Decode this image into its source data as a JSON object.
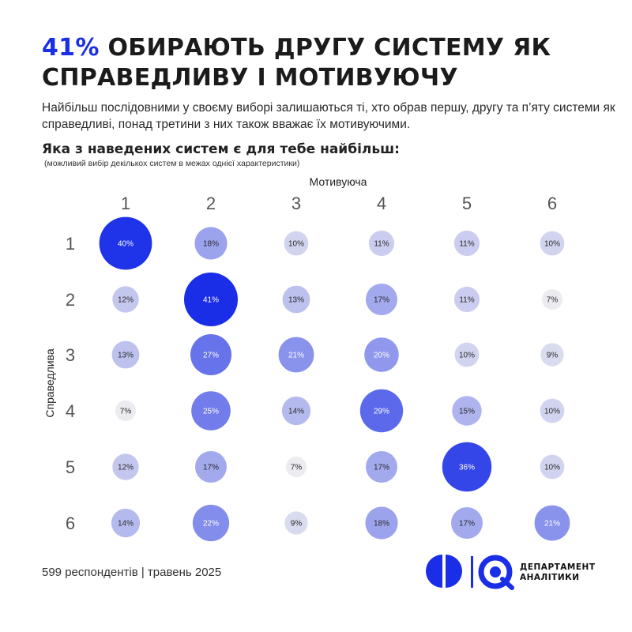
{
  "header": {
    "title_accent": "41%",
    "title_rest": "ОБИРАЮТЬ ДРУГУ СИСТЕМУ ЯК СПРАВЕДЛИВУ І МОТИВУЮЧУ",
    "subtitle": "Найбільш послідовними у своєму виборі залишаються ті, хто обрав першу, другу та п’яту системи як справедливі, понад третини з них також вважає їх мотивуючими.",
    "question": "Яка з наведених систем є для тебе найбільш:",
    "note": "(можливий вибір декількох систем в межах однієї характеристики)"
  },
  "chart_data": {
    "type": "heatmap",
    "xlabel": "Мотивуюча",
    "ylabel": "Справедлива",
    "x_categories": [
      "1",
      "2",
      "3",
      "4",
      "5",
      "6"
    ],
    "y_categories": [
      "1",
      "2",
      "3",
      "4",
      "5",
      "6"
    ],
    "values": [
      [
        40,
        18,
        10,
        11,
        11,
        10
      ],
      [
        12,
        41,
        13,
        17,
        11,
        7
      ],
      [
        13,
        27,
        21,
        20,
        10,
        9
      ],
      [
        7,
        25,
        14,
        29,
        15,
        10
      ],
      [
        12,
        17,
        7,
        17,
        36,
        10
      ],
      [
        14,
        22,
        9,
        18,
        17,
        21
      ]
    ],
    "unit": "%",
    "accent_color": "#1a2ee8"
  },
  "footer": {
    "source": "599 респондентів | травень 2025"
  },
  "logo": {
    "line1": "ДЕПАРТАМЕНТ",
    "line2": "АНАЛІТИКИ",
    "color": "#1a2ee8"
  }
}
